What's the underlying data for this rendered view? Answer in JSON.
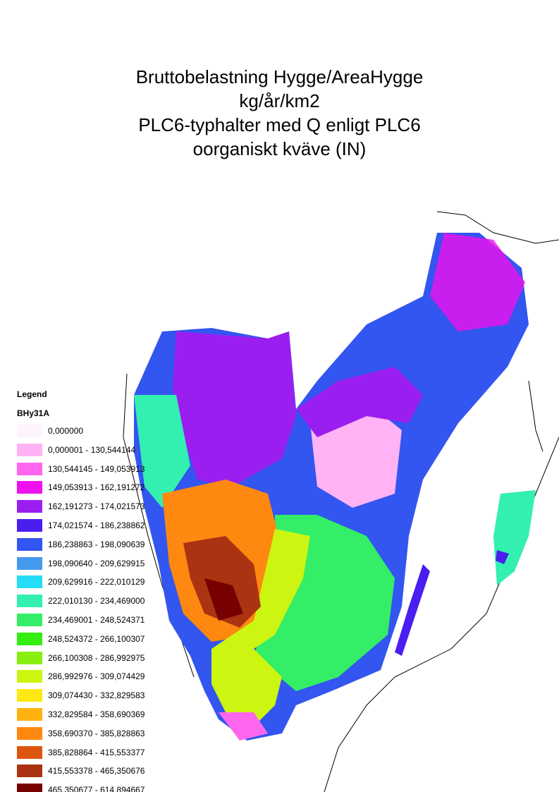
{
  "title_lines": [
    "Bruttobelastning Hygge/AreaHygge",
    "kg/år/km2",
    "PLC6-typhalter med Q enligt PLC6",
    "oorganiskt kväve (IN)"
  ],
  "legend": {
    "heading": "Legend",
    "layer": "BHy31A",
    "items": [
      {
        "label": "0,000000",
        "color": "#fdf4fd"
      },
      {
        "label": "0,000001 - 130,544144",
        "color": "#ffb3f5"
      },
      {
        "label": "130,544145 - 149,053913",
        "color": "#ff66ee"
      },
      {
        "label": "149,053913 - 162,191272",
        "color": "#ee11ee"
      },
      {
        "label": "162,191273 - 174,021573",
        "color": "#9b1ef0"
      },
      {
        "label": "174,021574 - 186,238862",
        "color": "#4b1ef0"
      },
      {
        "label": "186,238863 - 198,090639",
        "color": "#3355f0"
      },
      {
        "label": "198,090640 - 209,629915",
        "color": "#4499ee"
      },
      {
        "label": "209,629916 - 222,010129",
        "color": "#22ddf5"
      },
      {
        "label": "222,010130 - 234,469000",
        "color": "#33f0b0"
      },
      {
        "label": "234,469001 - 248,524371",
        "color": "#33ee66"
      },
      {
        "label": "248,524372 - 266,100307",
        "color": "#33ee11"
      },
      {
        "label": "266,100308 - 286,992975",
        "color": "#88f011"
      },
      {
        "label": "286,992976 - 309,074429",
        "color": "#ccf511"
      },
      {
        "label": "309,074430 - 332,829583",
        "color": "#ffe811"
      },
      {
        "label": "332,829584 - 358,690369",
        "color": "#ffb311"
      },
      {
        "label": "358,690370 - 385,828863",
        "color": "#ff8811"
      },
      {
        "label": "385,828864 - 415,553377",
        "color": "#dd5511"
      },
      {
        "label": "415,553378 - 465,350676",
        "color": "#aa3311"
      },
      {
        "label": "465,350677 - 614,894667",
        "color": "#770000"
      }
    ]
  }
}
